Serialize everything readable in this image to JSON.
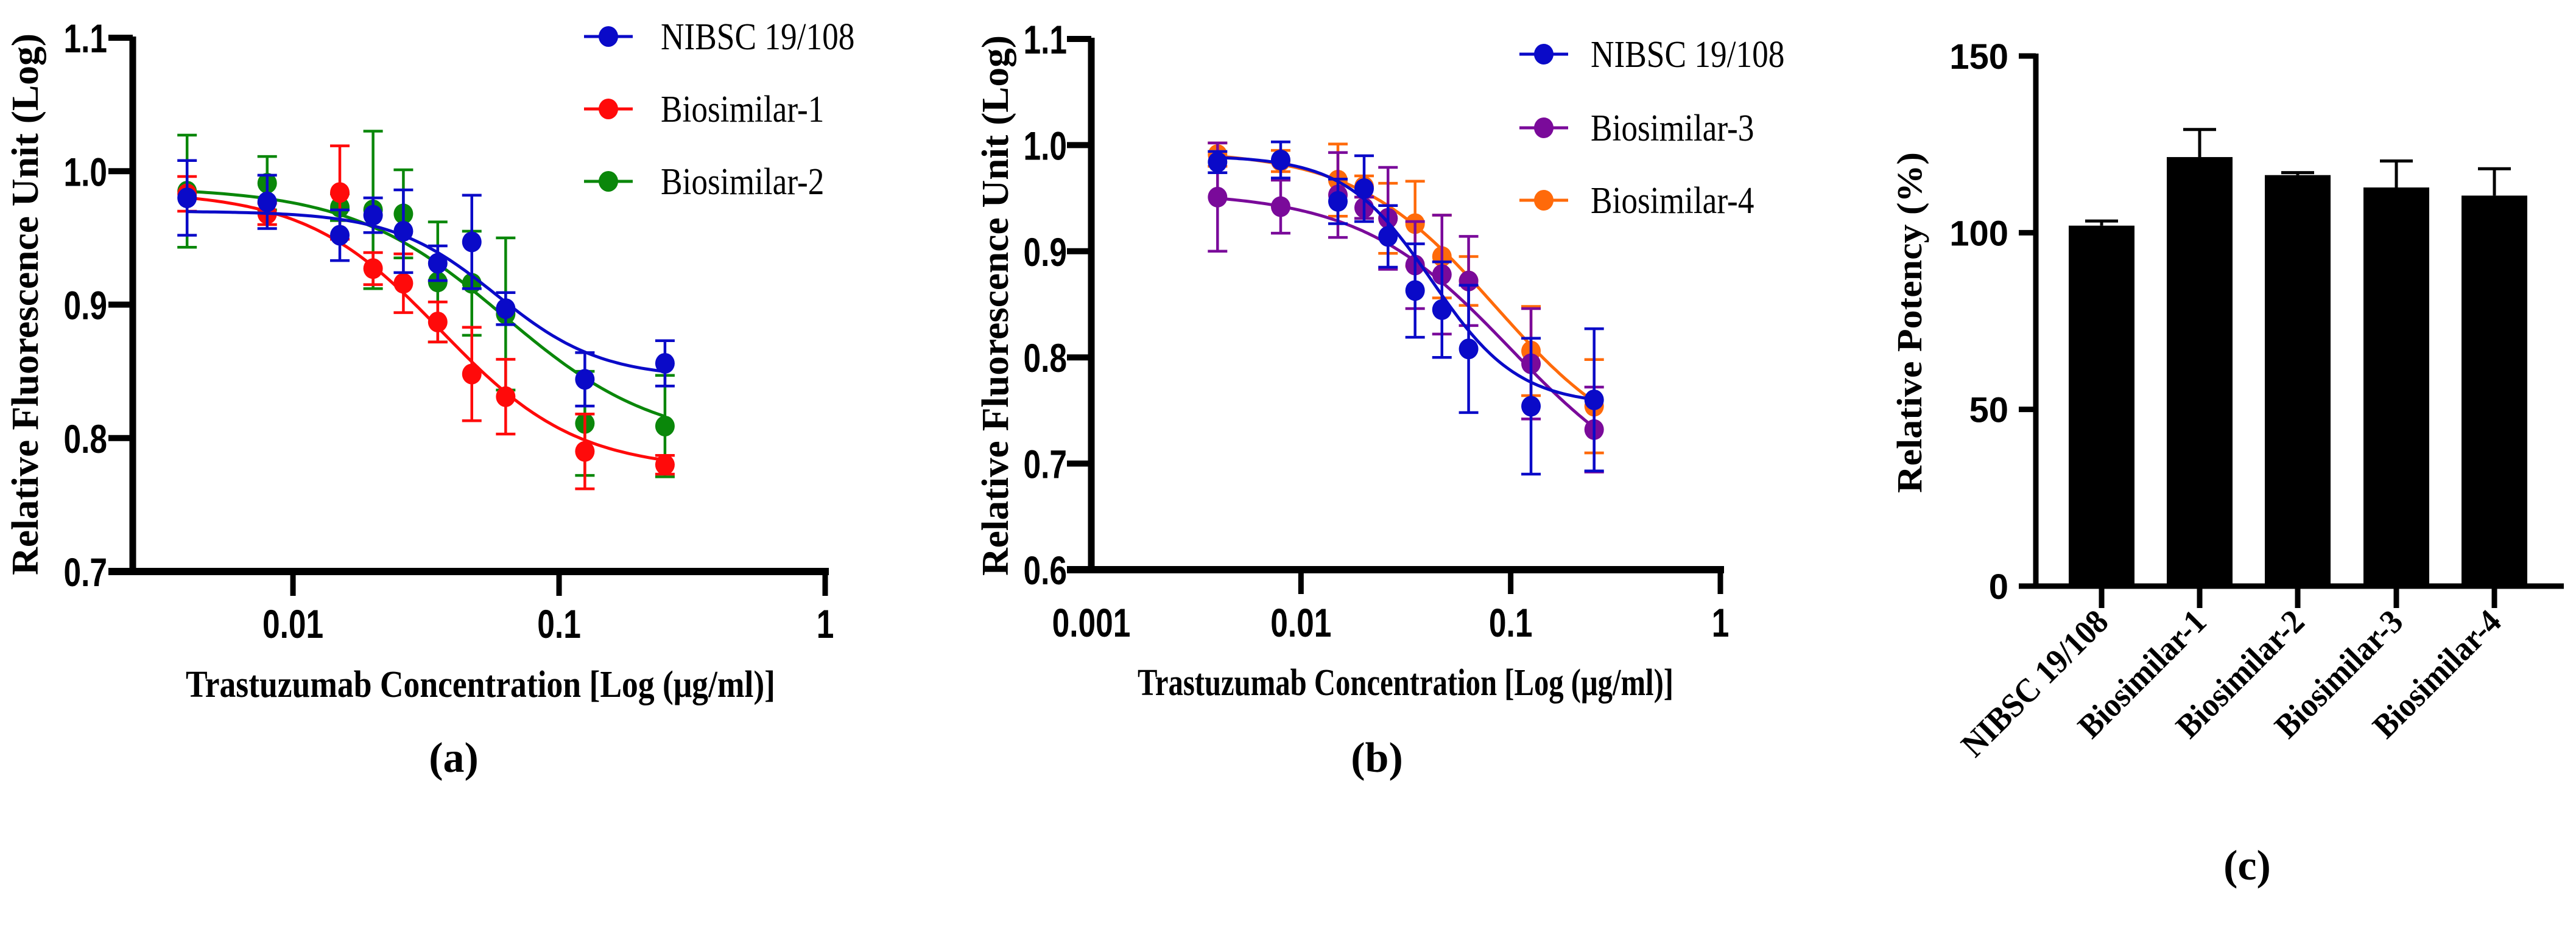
{
  "figure": {
    "panel_labels": [
      "(a)",
      "(b)",
      "(c)"
    ]
  },
  "chart_data": [
    {
      "panel": "a",
      "type": "line",
      "xscale": "log",
      "xlabel": "Trastuzumab Concentration [Log (μg/ml)]",
      "ylabel": "Relative Fluorescence Unit (Log)",
      "xlim": [
        0.0025,
        1
      ],
      "ylim": [
        0.7,
        1.1
      ],
      "xticks": [
        0.01,
        0.1,
        1
      ],
      "xtick_labels": [
        "0.01",
        "0.1",
        "1"
      ],
      "yticks": [
        0.7,
        0.8,
        0.9,
        1.0,
        1.1
      ],
      "ytick_labels": [
        "0.7",
        "0.8",
        "0.9",
        "1.0",
        "1.1"
      ],
      "grid": false,
      "legend": "top-right",
      "x": [
        0.004,
        0.008,
        0.015,
        0.02,
        0.026,
        0.035,
        0.047,
        0.063,
        0.125,
        0.25
      ],
      "series": [
        {
          "name": "Biosimilar-2",
          "color": "#0a870a",
          "y": [
            0.985,
            0.991,
            0.973,
            0.971,
            0.968,
            0.917,
            0.916,
            0.893,
            0.811,
            0.809
          ],
          "err": [
            0.042,
            0.02,
            0.01,
            0.059,
            0.033,
            0.045,
            0.039,
            0.057,
            0.039,
            0.038
          ],
          "fit": {
            "top": 0.988,
            "bottom": 0.795,
            "ec50": 0.062,
            "hill": 1.5
          }
        },
        {
          "name": "Biosimilar-1",
          "color": "#ff0a0a",
          "y": [
            0.983,
            0.968,
            0.984,
            0.927,
            0.916,
            0.887,
            0.848,
            0.831,
            0.79,
            0.78
          ],
          "err": [
            0.013,
            0.008,
            0.035,
            0.012,
            0.022,
            0.015,
            0.035,
            0.028,
            0.028,
            0.007
          ],
          "fit": {
            "top": 0.985,
            "bottom": 0.776,
            "ec50": 0.036,
            "hill": 1.7
          }
        },
        {
          "name": "NIBSC 19/108",
          "color": "#0a0ac8",
          "y": [
            0.98,
            0.977,
            0.952,
            0.967,
            0.955,
            0.931,
            0.947,
            0.897,
            0.844,
            0.856
          ],
          "err": [
            0.028,
            0.02,
            0.019,
            0.013,
            0.031,
            0.013,
            0.035,
            0.012,
            0.02,
            0.017
          ],
          "fit": {
            "top": 0.97,
            "bottom": 0.845,
            "ec50": 0.058,
            "hill": 2.2
          }
        }
      ],
      "legend_order": [
        "NIBSC 19/108",
        "Biosimilar-1",
        "Biosimilar-2"
      ]
    },
    {
      "panel": "b",
      "type": "line",
      "xscale": "log",
      "xlabel": "Trastuzumab Concentration [Log (μg/ml)]",
      "ylabel": "Relative Fluorescence Unit (Log)",
      "xlim": [
        0.001,
        1
      ],
      "ylim": [
        0.6,
        1.1
      ],
      "xticks": [
        0.001,
        0.01,
        0.1,
        1
      ],
      "xtick_labels": [
        "0.001",
        "0.01",
        "0.1",
        "1"
      ],
      "yticks": [
        0.6,
        0.7,
        0.8,
        0.9,
        1.0,
        1.1
      ],
      "ytick_labels": [
        "0.6",
        "0.7",
        "0.8",
        "0.9",
        "1.0",
        "1.1"
      ],
      "grid": false,
      "legend": "top-right",
      "x": [
        0.004,
        0.008,
        0.015,
        0.02,
        0.026,
        0.035,
        0.047,
        0.063,
        0.125,
        0.25
      ],
      "series": [
        {
          "name": "Biosimilar-4",
          "color": "#ff6a0a",
          "y": [
            0.991,
            0.985,
            0.967,
            0.961,
            0.931,
            0.926,
            0.895,
            0.872,
            0.806,
            0.754
          ],
          "err": [
            0.011,
            0.01,
            0.034,
            0.01,
            0.033,
            0.04,
            0.039,
            0.023,
            0.042,
            0.044
          ],
          "fit": {
            "top": 0.995,
            "bottom": 0.7,
            "ec50": 0.085,
            "hill": 1.3
          }
        },
        {
          "name": "Biosimilar-3",
          "color": "#7a0a9a",
          "y": [
            0.951,
            0.942,
            0.953,
            0.941,
            0.931,
            0.887,
            0.878,
            0.872,
            0.794,
            0.732
          ],
          "err": [
            0.051,
            0.025,
            0.04,
            0.01,
            0.048,
            0.041,
            0.056,
            0.042,
            0.052,
            0.04
          ],
          "fit": {
            "top": 0.956,
            "bottom": 0.66,
            "ec50": 0.1,
            "hill": 1.2
          }
        },
        {
          "name": "NIBSC 19/108",
          "color": "#0a0ac8",
          "y": [
            0.984,
            0.986,
            0.947,
            0.959,
            0.914,
            0.863,
            0.845,
            0.808,
            0.754,
            0.76
          ],
          "err": [
            0.01,
            0.017,
            0.021,
            0.031,
            0.029,
            0.044,
            0.045,
            0.06,
            0.064,
            0.067
          ],
          "fit": {
            "top": 0.99,
            "bottom": 0.755,
            "ec50": 0.042,
            "hill": 2.1
          }
        }
      ],
      "legend_order": [
        "NIBSC 19/108",
        "Biosimilar-3",
        "Biosimilar-4"
      ]
    },
    {
      "panel": "c",
      "type": "bar",
      "title": "",
      "xlabel": "",
      "ylabel": "Relative Potency (%)",
      "categories": [
        "NIBSC 19/108",
        "Biosimilar-1",
        "Biosimilar-2",
        "Biosimilar-3",
        "Biosimilar-4"
      ],
      "values": [
        102.0,
        121.4,
        116.3,
        112.8,
        110.5
      ],
      "err_upper": [
        1.3,
        7.8,
        0.7,
        7.5,
        7.6
      ],
      "ylim": [
        0,
        150
      ],
      "yticks": [
        0,
        50,
        100,
        150
      ],
      "ytick_labels": [
        "0",
        "50",
        "100",
        "150"
      ],
      "bar_color": "#000000",
      "grid": false
    }
  ]
}
